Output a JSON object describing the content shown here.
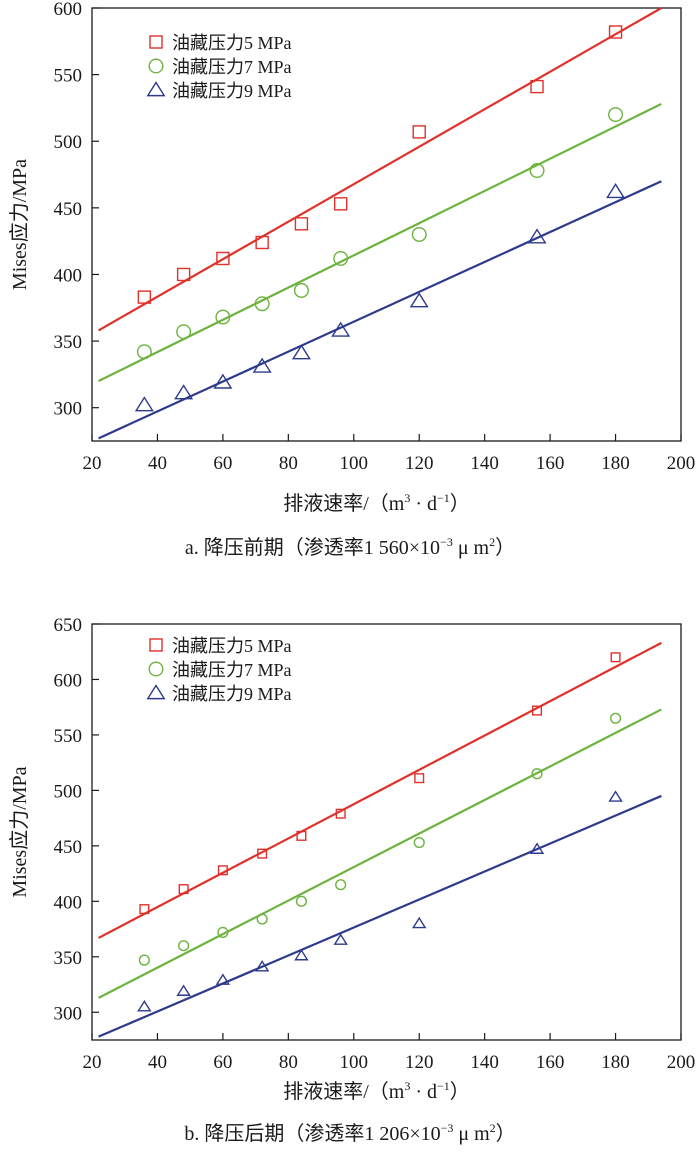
{
  "colors": {
    "red": "#e0302a",
    "green": "#6db33f",
    "blue": "#2e3a8c",
    "axis": "#1a1a1a"
  },
  "chart_data": [
    {
      "type": "scatter",
      "panel": "a",
      "caption": {
        "prefix": "a.",
        "title": "降压前期（渗透率1 560×10",
        "exp": "−3",
        "unit": " μ m",
        "unit_exp": "2",
        "close": "）"
      },
      "xlabel": {
        "text": "排液速率/（m",
        "sup1": "3",
        "mid": " · d",
        "sup2": "−1",
        "end": "）"
      },
      "ylabel": "Mises应力/MPa",
      "xlim": [
        20,
        200
      ],
      "ylim": [
        275,
        600
      ],
      "xticks": [
        20,
        40,
        60,
        80,
        100,
        120,
        140,
        160,
        180,
        200
      ],
      "yticks": [
        300,
        350,
        400,
        450,
        500,
        550,
        600
      ],
      "marker_size": "large",
      "legend_position": "top-left",
      "series": [
        {
          "name": "油藏压力5 MPa",
          "color": "#e0302a",
          "marker": "square",
          "x": [
            36,
            48,
            60,
            72,
            84,
            96,
            120,
            156,
            180
          ],
          "y": [
            383,
            400,
            412,
            424,
            438,
            453,
            507,
            541,
            582
          ],
          "fit": [
            [
              22,
              358
            ],
            [
              194,
              600
            ]
          ]
        },
        {
          "name": "油藏压力7 MPa",
          "color": "#6db33f",
          "marker": "circle",
          "x": [
            36,
            48,
            60,
            72,
            84,
            96,
            120,
            156,
            180
          ],
          "y": [
            342,
            357,
            368,
            378,
            388,
            412,
            430,
            478,
            520
          ],
          "fit": [
            [
              22,
              320
            ],
            [
              194,
              528
            ]
          ]
        },
        {
          "name": "油藏压力9 MPa",
          "color": "#2e3a8c",
          "marker": "triangle",
          "x": [
            36,
            48,
            60,
            72,
            84,
            96,
            120,
            156,
            180
          ],
          "y": [
            302,
            311,
            319,
            331,
            341,
            358,
            380,
            428,
            462
          ],
          "fit": [
            [
              22,
              277
            ],
            [
              194,
              470
            ]
          ]
        }
      ]
    },
    {
      "type": "scatter",
      "panel": "b",
      "caption": {
        "prefix": "b.",
        "title": "降压后期（渗透率1 206×10",
        "exp": "−3",
        "unit": " μ m",
        "unit_exp": "2",
        "close": "）"
      },
      "xlabel": {
        "text": "排液速率/（m",
        "sup1": "3",
        "mid": " · d",
        "sup2": "−1",
        "end": "）"
      },
      "ylabel": "Mises应力/MPa",
      "xlim": [
        20,
        200
      ],
      "ylim": [
        275,
        650
      ],
      "xticks": [
        20,
        40,
        60,
        80,
        100,
        120,
        140,
        160,
        180,
        200
      ],
      "yticks": [
        300,
        350,
        400,
        450,
        500,
        550,
        600,
        650
      ],
      "marker_size": "small",
      "legend_position": "top-left",
      "series": [
        {
          "name": "油藏压力5 MPa",
          "color": "#e0302a",
          "marker": "square",
          "x": [
            36,
            48,
            60,
            72,
            84,
            96,
            120,
            156,
            180
          ],
          "y": [
            393,
            411,
            428,
            443,
            459,
            479,
            511,
            572,
            620
          ],
          "fit": [
            [
              22,
              367
            ],
            [
              194,
              633
            ]
          ]
        },
        {
          "name": "油藏压力7 MPa",
          "color": "#6db33f",
          "marker": "circle",
          "x": [
            36,
            48,
            60,
            72,
            84,
            96,
            120,
            156,
            180
          ],
          "y": [
            347,
            360,
            372,
            384,
            400,
            415,
            453,
            515,
            565
          ],
          "fit": [
            [
              22,
              313
            ],
            [
              194,
              573
            ]
          ]
        },
        {
          "name": "油藏压力9 MPa",
          "color": "#2e3a8c",
          "marker": "triangle",
          "x": [
            36,
            48,
            60,
            72,
            84,
            96,
            120,
            156,
            180
          ],
          "y": [
            305,
            319,
            329,
            341,
            351,
            365,
            380,
            447,
            494
          ],
          "fit": [
            [
              22,
              278
            ],
            [
              194,
              495
            ]
          ]
        }
      ]
    }
  ]
}
